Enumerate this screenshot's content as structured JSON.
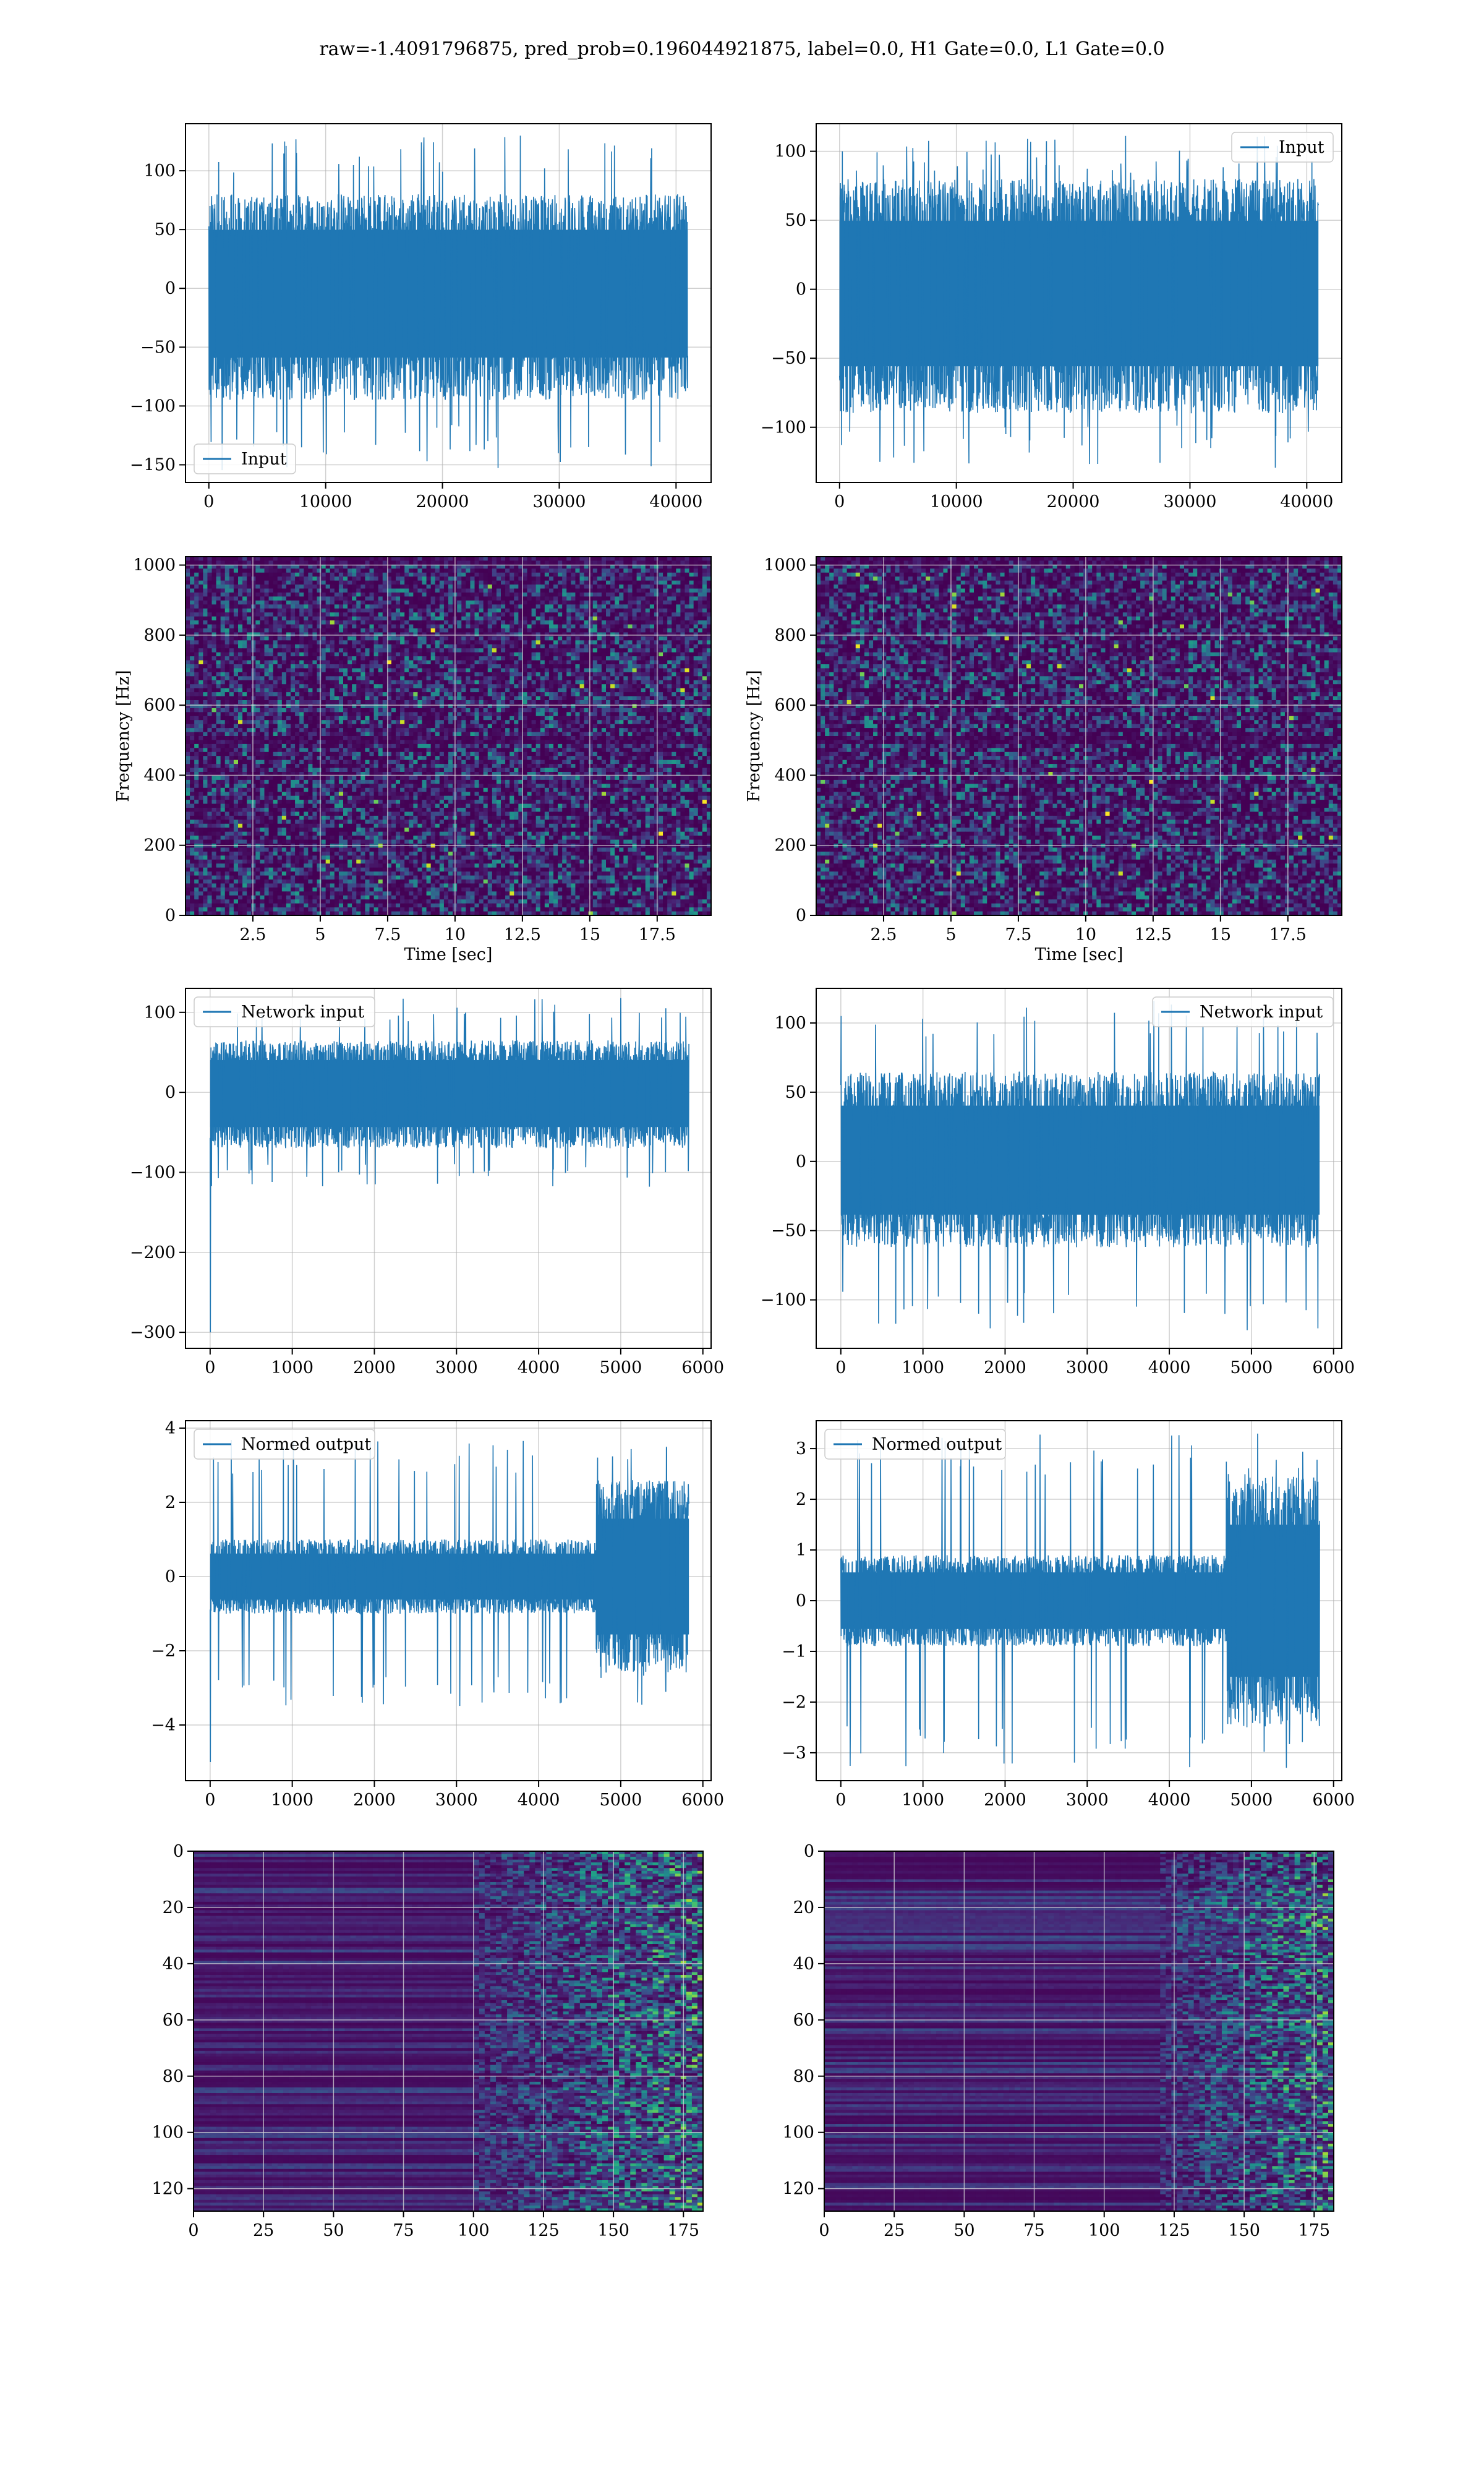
{
  "suptitle": "raw=-1.4091796875, pred_prob=0.196044921875, label=0.0, H1 Gate=0.0, L1 Gate=0.0",
  "colors": {
    "line": "#1f77b4",
    "grid": "#b0b0b0",
    "viridis_low": "#440154",
    "viridis_mid": "#21918c",
    "viridis_high": "#fde725"
  },
  "chart_data": [
    {
      "id": "ts-input-h1",
      "type": "line",
      "legend": {
        "label": "Input",
        "loc": "lower-left"
      },
      "xlim": [
        -2000,
        43000
      ],
      "ylim": [
        -165,
        140
      ],
      "xticks": [
        0,
        10000,
        20000,
        30000,
        40000
      ],
      "yticks": [
        -150,
        -100,
        -50,
        0,
        50,
        100
      ],
      "series": [
        {
          "name": "Input",
          "x_range": [
            0,
            41000
          ],
          "envelope": [
            -95,
            80
          ],
          "spike_range": [
            -155,
            130
          ]
        }
      ],
      "grid": true
    },
    {
      "id": "ts-input-l1",
      "type": "line",
      "legend": {
        "label": "Input",
        "loc": "upper-right"
      },
      "xlim": [
        -2000,
        43000
      ],
      "ylim": [
        -140,
        120
      ],
      "xticks": [
        0,
        10000,
        20000,
        30000,
        40000
      ],
      "yticks": [
        -100,
        -50,
        0,
        50,
        100
      ],
      "series": [
        {
          "name": "Input",
          "x_range": [
            0,
            41000
          ],
          "envelope": [
            -90,
            80
          ],
          "spike_range": [
            -130,
            112
          ]
        }
      ],
      "grid": true
    },
    {
      "id": "spec-h1",
      "type": "heatmap",
      "xlabel": "Time [sec]",
      "ylabel": "Frequency [Hz]",
      "xlim": [
        0,
        19.5
      ],
      "ylim": [
        0,
        1024
      ],
      "xticks": [
        2.5,
        5.0,
        7.5,
        10.0,
        12.5,
        15.0,
        17.5
      ],
      "yticks": [
        0,
        200,
        400,
        600,
        800,
        1000
      ],
      "colormap": "viridis",
      "grid": true
    },
    {
      "id": "spec-l1",
      "type": "heatmap",
      "xlabel": "Time [sec]",
      "ylabel": "Frequency [Hz]",
      "xlim": [
        0,
        19.5
      ],
      "ylim": [
        0,
        1024
      ],
      "xticks": [
        2.5,
        5.0,
        7.5,
        10.0,
        12.5,
        15.0,
        17.5
      ],
      "yticks": [
        0,
        200,
        400,
        600,
        800,
        1000
      ],
      "colormap": "viridis",
      "grid": true
    },
    {
      "id": "ts-net-h1",
      "type": "line",
      "legend": {
        "label": "Network input",
        "loc": "upper-left"
      },
      "xlim": [
        -300,
        6100
      ],
      "ylim": [
        -320,
        130
      ],
      "xticks": [
        0,
        1000,
        2000,
        3000,
        4000,
        5000,
        6000
      ],
      "yticks": [
        -300,
        -200,
        -100,
        0,
        100
      ],
      "series": [
        {
          "name": "Network input",
          "x_range": [
            0,
            5830
          ],
          "envelope": [
            -70,
            65
          ],
          "spike_range": [
            -118,
            118
          ],
          "initial_dip": -300
        }
      ],
      "grid": true
    },
    {
      "id": "ts-net-l1",
      "type": "line",
      "legend": {
        "label": "Network input",
        "loc": "upper-right"
      },
      "xlim": [
        -300,
        6100
      ],
      "ylim": [
        -135,
        125
      ],
      "xticks": [
        0,
        1000,
        2000,
        3000,
        4000,
        5000,
        6000
      ],
      "yticks": [
        -100,
        -50,
        0,
        50,
        100
      ],
      "series": [
        {
          "name": "Network input",
          "x_range": [
            0,
            5830
          ],
          "envelope": [
            -62,
            65
          ],
          "spike_range": [
            -122,
            117
          ],
          "initial_spike": 105
        }
      ],
      "grid": true
    },
    {
      "id": "ts-norm-h1",
      "type": "line",
      "legend": {
        "label": "Normed output",
        "loc": "upper-left"
      },
      "xlim": [
        -300,
        6100
      ],
      "ylim": [
        -5.5,
        4.2
      ],
      "xticks": [
        0,
        1000,
        2000,
        3000,
        4000,
        5000,
        6000
      ],
      "yticks": [
        -4,
        -2,
        0,
        2,
        4
      ],
      "series": [
        {
          "name": "Normed output",
          "x_range": [
            0,
            5830
          ],
          "envelope": [
            -1.0,
            1.0
          ],
          "burst_start": 4700,
          "burst_envelope": [
            -2.6,
            2.6
          ],
          "spike_range": [
            -3.5,
            3.7
          ],
          "initial_dip": -5.0
        }
      ],
      "grid": true
    },
    {
      "id": "ts-norm-l1",
      "type": "line",
      "legend": {
        "label": "Normed output",
        "loc": "upper-left"
      },
      "xlim": [
        -300,
        6100
      ],
      "ylim": [
        -3.55,
        3.55
      ],
      "xticks": [
        0,
        1000,
        2000,
        3000,
        4000,
        5000,
        6000
      ],
      "yticks": [
        -3,
        -2,
        -1,
        0,
        1,
        2,
        3
      ],
      "series": [
        {
          "name": "Normed output",
          "x_range": [
            0,
            5830
          ],
          "envelope": [
            -0.9,
            0.9
          ],
          "burst_start": 4700,
          "burst_envelope": [
            -2.5,
            2.5
          ],
          "spike_range": [
            -3.3,
            3.3
          ]
        }
      ],
      "grid": true
    },
    {
      "id": "feat-h1",
      "type": "heatmap",
      "xlim": [
        0,
        182
      ],
      "ylim": [
        128,
        0
      ],
      "xticks": [
        0,
        25,
        50,
        75,
        100,
        125,
        150,
        175
      ],
      "yticks": [
        0,
        20,
        40,
        60,
        80,
        100,
        120
      ],
      "colormap": "viridis",
      "active_from": 100,
      "grid": true
    },
    {
      "id": "feat-l1",
      "type": "heatmap",
      "xlim": [
        0,
        182
      ],
      "ylim": [
        128,
        0
      ],
      "xticks": [
        0,
        25,
        50,
        75,
        100,
        125,
        150,
        175
      ],
      "yticks": [
        0,
        20,
        40,
        60,
        80,
        100,
        120
      ],
      "colormap": "viridis",
      "active_from": 120,
      "grid": true
    }
  ]
}
